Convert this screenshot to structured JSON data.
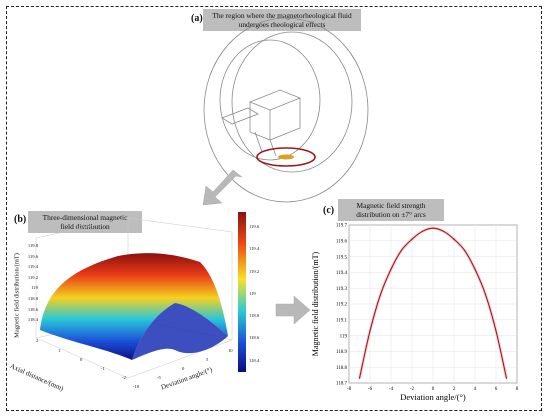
{
  "panel_a": {
    "label": "(a)",
    "caption_line1": "The region where the magnetorheological fluid",
    "caption_line2": "undergoes rheological effects"
  },
  "panel_b": {
    "label": "(b)",
    "caption_line1": "Three-dimensional magnetic",
    "caption_line2": "field distribution",
    "zlabel": "Magnetic field distribution/(mT)",
    "xlabel": "Deviation angle/(°)",
    "ylabel": "Axial distance/(mm)",
    "z_ticks": [
      "119.8",
      "119.6",
      "119.4",
      "119.2",
      "119",
      "118.8",
      "118.6",
      "118.4"
    ],
    "x_ticks": [
      "-10",
      "-5",
      "0",
      "5",
      "10"
    ],
    "y_ticks": [
      "2",
      "1",
      "0",
      "-1",
      "-2"
    ],
    "colorbar_ticks": [
      "119.6",
      "119.4",
      "119.2",
      "119",
      "118.8",
      "118.6",
      "118.4"
    ],
    "colors": {
      "low": "#1010a0",
      "mid": "#21c4d8",
      "high": "#fbe426",
      "top": "#a31414"
    }
  },
  "panel_c": {
    "label": "(c)",
    "caption_line1": "Magnetic field strength",
    "caption_line2": "distribution on ±7° arcs"
  },
  "chart_data": {
    "type": "line",
    "title": "",
    "xlabel": "Deviation angle/(°)",
    "ylabel": "Magnetic field distribution/(mT)",
    "xlim": [
      -8,
      8
    ],
    "ylim": [
      118.7,
      119.7
    ],
    "x_ticks": [
      -8,
      -6,
      -4,
      -2,
      0,
      2,
      4,
      6,
      8
    ],
    "y_ticks": [
      118.7,
      118.8,
      118.9,
      119,
      119.1,
      119.2,
      119.3,
      119.4,
      119.5,
      119.6,
      119.7
    ],
    "grid": true,
    "series": [
      {
        "color": "#a01818",
        "x": [
          -7,
          -6,
          -5,
          -4,
          -3,
          -2,
          -1,
          0,
          1,
          2,
          3,
          4,
          5,
          6,
          7
        ],
        "y": [
          118.73,
          119.03,
          119.26,
          119.42,
          119.54,
          119.61,
          119.66,
          119.68,
          119.66,
          119.61,
          119.54,
          119.42,
          119.26,
          119.03,
          118.73
        ]
      }
    ]
  }
}
